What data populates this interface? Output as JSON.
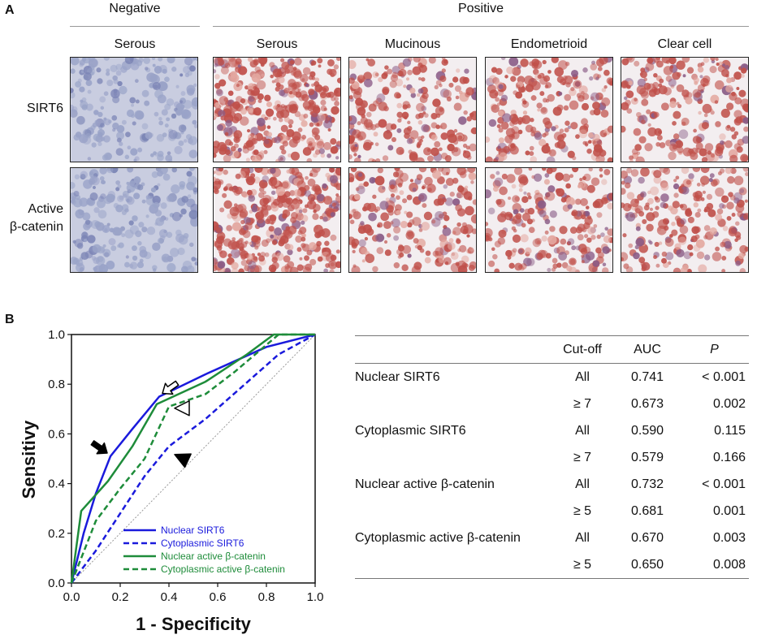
{
  "panel_a": {
    "letter": "A",
    "groups": [
      "Negative",
      "Positive"
    ],
    "columns": [
      "Serous",
      "Serous",
      "Mucinous",
      "Endometrioid",
      "Clear cell"
    ],
    "rows": [
      {
        "label_lines": [
          "SIRT6"
        ]
      },
      {
        "label_lines": [
          "Active",
          "β-catenin"
        ]
      }
    ],
    "stain_colors": {
      "negative": "#9aa3c8",
      "positive": "#c0504a",
      "background": "#f3eef0"
    }
  },
  "panel_b": {
    "letter": "B",
    "table": {
      "headers": [
        "",
        "Cut-off",
        "AUC",
        "P"
      ],
      "rows": [
        {
          "marker": "Nuclear SIRT6",
          "cutoff": "All",
          "auc": "0.741",
          "p": "<  0.001"
        },
        {
          "marker": "",
          "cutoff": "≥ 7",
          "auc": "0.673",
          "p": "0.002"
        },
        {
          "marker": "Cytoplasmic SIRT6",
          "cutoff": "All",
          "auc": "0.590",
          "p": "0.115"
        },
        {
          "marker": "",
          "cutoff": "≥ 7",
          "auc": "0.579",
          "p": "0.166"
        },
        {
          "marker": "Nuclear active β-catenin",
          "cutoff": "All",
          "auc": "0.732",
          "p": "< 0.001"
        },
        {
          "marker": "",
          "cutoff": "≥ 5",
          "auc": "0.681",
          "p": "0.001"
        },
        {
          "marker": "Cytoplasmic active β-catenin",
          "cutoff": "All",
          "auc": "0.670",
          "p": "0.003"
        },
        {
          "marker": "",
          "cutoff": "≥ 5",
          "auc": "0.650",
          "p": "0.008"
        }
      ]
    }
  },
  "chart_data": {
    "type": "line",
    "title": "",
    "xlabel": "1 - Specificity",
    "ylabel": "Sensitivy",
    "xlim": [
      0,
      1
    ],
    "ylim": [
      0,
      1
    ],
    "xticks": [
      "0.0",
      "0.2",
      "0.4",
      "0.6",
      "0.8",
      "1.0"
    ],
    "yticks": [
      "0.0",
      "0.2",
      "0.4",
      "0.6",
      "0.8",
      "1.0"
    ],
    "grid": false,
    "legend_position": "bottom-right",
    "reference_line": {
      "style": "dotted",
      "color": "#999999",
      "points": [
        [
          0,
          0
        ],
        [
          1,
          1
        ]
      ]
    },
    "series": [
      {
        "name": "Nuclear SIRT6",
        "color": "#1a1adc",
        "dash": "solid",
        "points": [
          [
            0,
            0
          ],
          [
            0.05,
            0.2
          ],
          [
            0.1,
            0.36
          ],
          [
            0.16,
            0.51
          ],
          [
            0.25,
            0.62
          ],
          [
            0.36,
            0.75
          ],
          [
            0.55,
            0.84
          ],
          [
            0.8,
            0.95
          ],
          [
            1,
            1
          ]
        ]
      },
      {
        "name": "Cytoplasmic SIRT6",
        "color": "#1a1adc",
        "dash": "dashed",
        "points": [
          [
            0,
            0
          ],
          [
            0.1,
            0.13
          ],
          [
            0.2,
            0.28
          ],
          [
            0.3,
            0.43
          ],
          [
            0.4,
            0.55
          ],
          [
            0.55,
            0.66
          ],
          [
            0.7,
            0.79
          ],
          [
            0.85,
            0.92
          ],
          [
            1,
            1
          ]
        ]
      },
      {
        "name": "Nuclear active β-catenin",
        "color": "#1e8c3a",
        "dash": "solid",
        "points": [
          [
            0,
            0
          ],
          [
            0.04,
            0.29
          ],
          [
            0.15,
            0.41
          ],
          [
            0.25,
            0.55
          ],
          [
            0.35,
            0.72
          ],
          [
            0.55,
            0.81
          ],
          [
            0.72,
            0.92
          ],
          [
            0.83,
            1
          ],
          [
            1,
            1
          ]
        ]
      },
      {
        "name": "Cytoplasmic active β-catenin",
        "color": "#1e8c3a",
        "dash": "dashed",
        "points": [
          [
            0,
            0
          ],
          [
            0.1,
            0.25
          ],
          [
            0.2,
            0.38
          ],
          [
            0.3,
            0.5
          ],
          [
            0.4,
            0.71
          ],
          [
            0.55,
            0.76
          ],
          [
            0.67,
            0.85
          ],
          [
            0.85,
            1
          ],
          [
            1,
            1
          ]
        ]
      }
    ],
    "markers": [
      {
        "kind": "arrow",
        "fill": "filled",
        "direction": "down-right",
        "at": [
          0.16,
          0.51
        ]
      },
      {
        "kind": "arrow",
        "fill": "open",
        "direction": "down-left",
        "at": [
          0.36,
          0.75
        ]
      },
      {
        "kind": "arrowhead",
        "fill": "open",
        "direction": "left",
        "at": [
          0.41,
          0.71
        ]
      },
      {
        "kind": "arrowhead",
        "fill": "filled",
        "direction": "up-left",
        "at": [
          0.41,
          0.55
        ]
      }
    ]
  }
}
